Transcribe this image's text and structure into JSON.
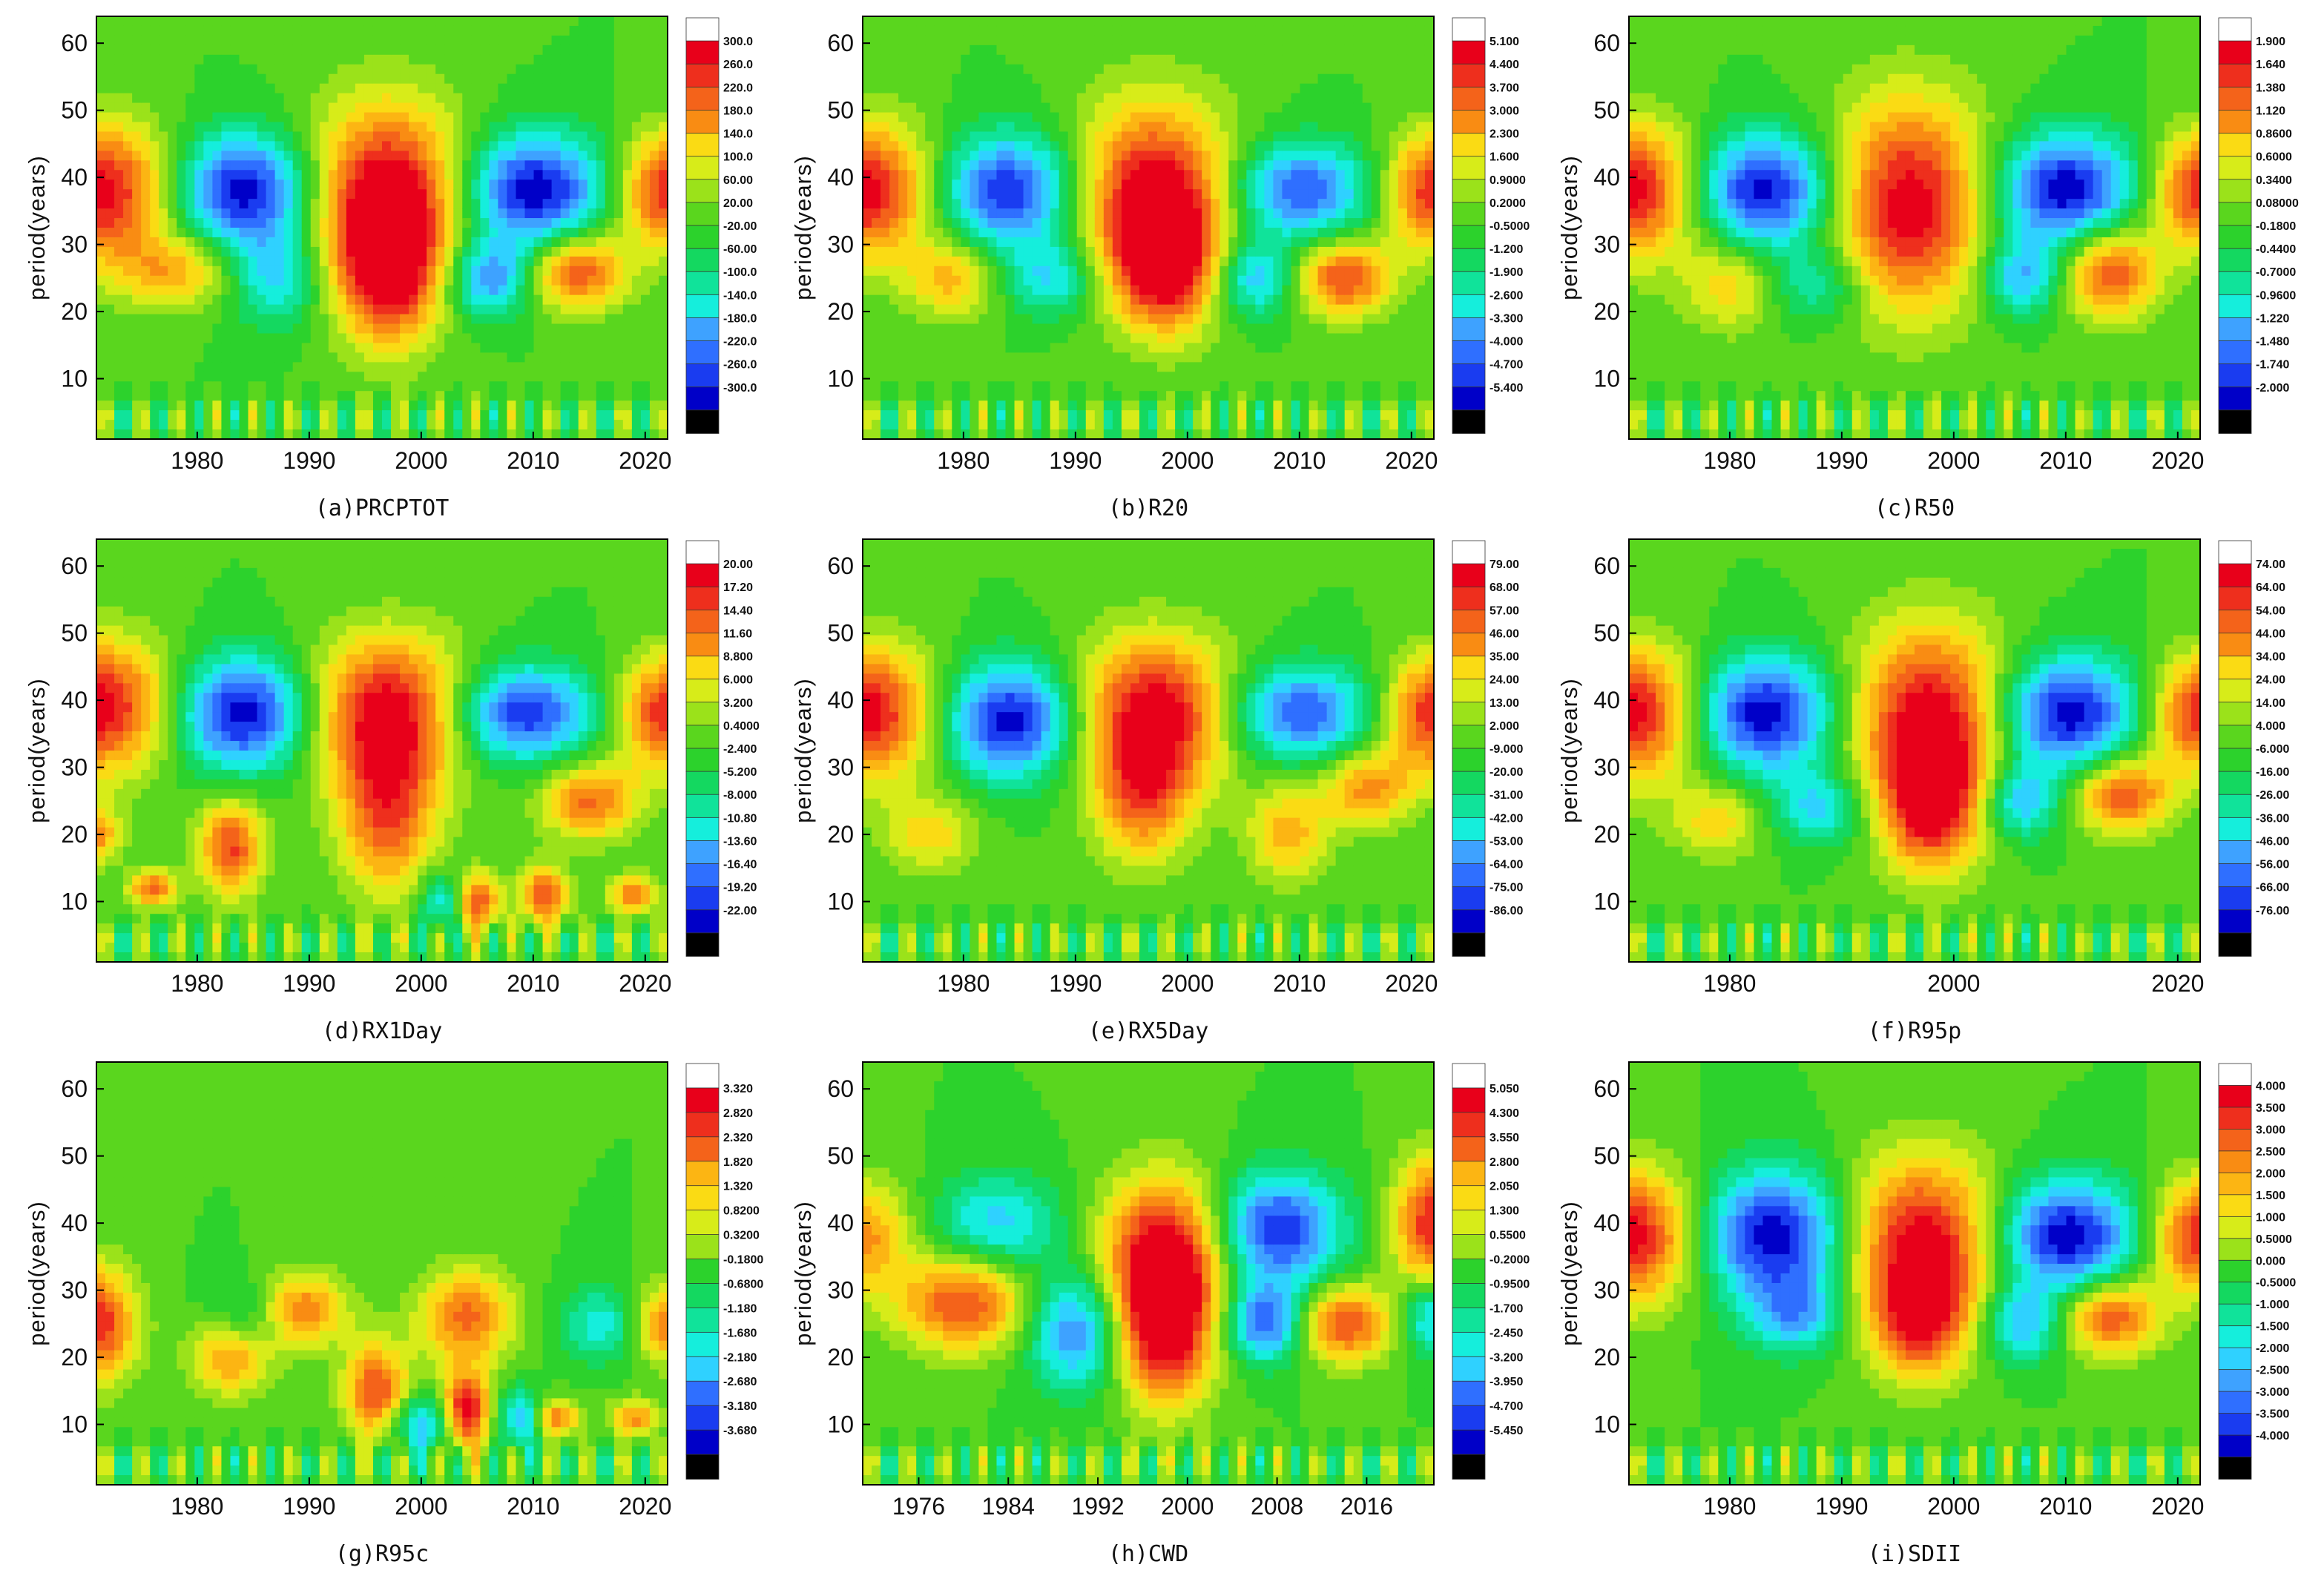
{
  "ylabel": "period(years)",
  "chart_data": [
    {
      "type": "heatmap",
      "id": "a",
      "caption": "(a)PRCPTOT",
      "ylabel": "period(years)",
      "xlim": [
        1971,
        2022
      ],
      "ylim": [
        1,
        64
      ],
      "xticks": [
        "1980",
        "1990",
        "2000",
        "2010",
        "2020"
      ],
      "xtick_values": [
        1980,
        1990,
        2000,
        2010,
        2020
      ],
      "yticks": [
        "10",
        "20",
        "30",
        "40",
        "50",
        "60"
      ],
      "ytick_values": [
        10,
        20,
        30,
        40,
        50,
        60
      ],
      "colorbar": [
        "300.0",
        "260.0",
        "220.0",
        "180.0",
        "140.0",
        "100.0",
        "60.00",
        "20.00",
        "-20.00",
        "-60.00",
        "-100.0",
        "-140.0",
        "-180.0",
        "-220.0",
        "-260.0",
        "-300.0"
      ]
    },
    {
      "type": "heatmap",
      "id": "b",
      "caption": "(b)R20",
      "ylabel": "period(years)",
      "xlim": [
        1971,
        2022
      ],
      "ylim": [
        1,
        64
      ],
      "xticks": [
        "1980",
        "1990",
        "2000",
        "2010",
        "2020"
      ],
      "xtick_values": [
        1980,
        1990,
        2000,
        2010,
        2020
      ],
      "yticks": [
        "10",
        "20",
        "30",
        "40",
        "50",
        "60"
      ],
      "ytick_values": [
        10,
        20,
        30,
        40,
        50,
        60
      ],
      "colorbar": [
        "5.100",
        "4.400",
        "3.700",
        "3.000",
        "2.300",
        "1.600",
        "0.9000",
        "0.2000",
        "-0.5000",
        "-1.200",
        "-1.900",
        "-2.600",
        "-3.300",
        "-4.000",
        "-4.700",
        "-5.400"
      ]
    },
    {
      "type": "heatmap",
      "id": "c",
      "caption": "(c)R50",
      "ylabel": "period(years)",
      "xlim": [
        1971,
        2022
      ],
      "ylim": [
        1,
        64
      ],
      "xticks": [
        "1980",
        "1990",
        "2000",
        "2010",
        "2020"
      ],
      "xtick_values": [
        1980,
        1990,
        2000,
        2010,
        2020
      ],
      "yticks": [
        "10",
        "20",
        "30",
        "40",
        "50",
        "60"
      ],
      "ytick_values": [
        10,
        20,
        30,
        40,
        50,
        60
      ],
      "colorbar": [
        "1.900",
        "1.640",
        "1.380",
        "1.120",
        "0.8600",
        "0.6000",
        "0.3400",
        "0.08000",
        "-0.1800",
        "-0.4400",
        "-0.7000",
        "-0.9600",
        "-1.220",
        "-1.480",
        "-1.740",
        "-2.000"
      ]
    },
    {
      "type": "heatmap",
      "id": "d",
      "caption": "(d)RX1Day",
      "ylabel": "period(years)",
      "xlim": [
        1971,
        2022
      ],
      "ylim": [
        1,
        64
      ],
      "xticks": [
        "1980",
        "1990",
        "2000",
        "2010",
        "2020"
      ],
      "xtick_values": [
        1980,
        1990,
        2000,
        2010,
        2020
      ],
      "yticks": [
        "10",
        "20",
        "30",
        "40",
        "50",
        "60"
      ],
      "ytick_values": [
        10,
        20,
        30,
        40,
        50,
        60
      ],
      "colorbar": [
        "20.00",
        "17.20",
        "14.40",
        "11.60",
        "8.800",
        "6.000",
        "3.200",
        "0.4000",
        "-2.400",
        "-5.200",
        "-8.000",
        "-10.80",
        "-13.60",
        "-16.40",
        "-19.20",
        "-22.00"
      ]
    },
    {
      "type": "heatmap",
      "id": "e",
      "caption": "(e)RX5Day",
      "ylabel": "period(years)",
      "xlim": [
        1971,
        2022
      ],
      "ylim": [
        1,
        64
      ],
      "xticks": [
        "1980",
        "1990",
        "2000",
        "2010",
        "2020"
      ],
      "xtick_values": [
        1980,
        1990,
        2000,
        2010,
        2020
      ],
      "yticks": [
        "10",
        "20",
        "30",
        "40",
        "50",
        "60"
      ],
      "ytick_values": [
        10,
        20,
        30,
        40,
        50,
        60
      ],
      "colorbar": [
        "79.00",
        "68.00",
        "57.00",
        "46.00",
        "35.00",
        "24.00",
        "13.00",
        "2.000",
        "-9.000",
        "-20.00",
        "-31.00",
        "-42.00",
        "-53.00",
        "-64.00",
        "-75.00",
        "-86.00"
      ]
    },
    {
      "type": "heatmap",
      "id": "f",
      "caption": "(f)R95p",
      "ylabel": "period(years)",
      "xlim": [
        1971,
        2022
      ],
      "ylim": [
        1,
        64
      ],
      "xticks": [
        "1980",
        "2000",
        "2020"
      ],
      "xtick_values": [
        1980,
        2000,
        2020
      ],
      "yticks": [
        "10",
        "20",
        "30",
        "40",
        "50",
        "60"
      ],
      "ytick_values": [
        10,
        20,
        30,
        40,
        50,
        60
      ],
      "colorbar": [
        "74.00",
        "64.00",
        "54.00",
        "44.00",
        "34.00",
        "24.00",
        "14.00",
        "4.000",
        "-6.000",
        "-16.00",
        "-26.00",
        "-36.00",
        "-46.00",
        "-56.00",
        "-66.00",
        "-76.00"
      ]
    },
    {
      "type": "heatmap",
      "id": "g",
      "caption": "(g)R95c",
      "ylabel": "period(years)",
      "xlim": [
        1971,
        2022
      ],
      "ylim": [
        1,
        64
      ],
      "xticks": [
        "1980",
        "1990",
        "2000",
        "2010",
        "2020"
      ],
      "xtick_values": [
        1980,
        1990,
        2000,
        2010,
        2020
      ],
      "yticks": [
        "10",
        "20",
        "30",
        "40",
        "50",
        "60"
      ],
      "ytick_values": [
        10,
        20,
        30,
        40,
        50,
        60
      ],
      "colorbar": [
        "3.320",
        "2.820",
        "2.320",
        "1.820",
        "1.320",
        "0.8200",
        "0.3200",
        "-0.1800",
        "-0.6800",
        "-1.180",
        "-1.680",
        "-2.180",
        "-2.680",
        "-3.180",
        "-3.680"
      ]
    },
    {
      "type": "heatmap",
      "id": "h",
      "caption": "(h)CWD",
      "ylabel": "period(years)",
      "xlim": [
        1971,
        2022
      ],
      "ylim": [
        1,
        64
      ],
      "xticks": [
        "1976",
        "1984",
        "1992",
        "2000",
        "2008",
        "2016"
      ],
      "xtick_values": [
        1976,
        1984,
        1992,
        2000,
        2008,
        2016
      ],
      "yticks": [
        "10",
        "20",
        "30",
        "40",
        "50",
        "60"
      ],
      "ytick_values": [
        10,
        20,
        30,
        40,
        50,
        60
      ],
      "colorbar": [
        "5.050",
        "4.300",
        "3.550",
        "2.800",
        "2.050",
        "1.300",
        "0.5500",
        "-0.2000",
        "-0.9500",
        "-1.700",
        "-2.450",
        "-3.200",
        "-3.950",
        "-4.700",
        "-5.450"
      ]
    },
    {
      "type": "heatmap",
      "id": "i",
      "caption": "(i)SDII",
      "ylabel": "period(years)",
      "xlim": [
        1971,
        2022
      ],
      "ylim": [
        1,
        64
      ],
      "xticks": [
        "1980",
        "1990",
        "2000",
        "2010",
        "2020"
      ],
      "xtick_values": [
        1980,
        1990,
        2000,
        2010,
        2020
      ],
      "yticks": [
        "10",
        "20",
        "30",
        "40",
        "50",
        "60"
      ],
      "ytick_values": [
        10,
        20,
        30,
        40,
        50,
        60
      ],
      "colorbar": [
        "4.000",
        "3.500",
        "3.000",
        "2.500",
        "2.000",
        "1.500",
        "1.000",
        "0.5000",
        "0.000",
        "-0.5000",
        "-1.000",
        "-1.500",
        "-2.000",
        "-2.500",
        "-3.000",
        "-3.500",
        "-4.000"
      ]
    }
  ],
  "colors": {
    "scale": [
      "#000000",
      "#0000c8",
      "#1a3cf0",
      "#2f6fff",
      "#3ea2ff",
      "#2fd1ff",
      "#15eedc",
      "#10e39a",
      "#14d860",
      "#2cd22c",
      "#5ad61e",
      "#9be21a",
      "#d7ec19",
      "#fadb14",
      "#fcb513",
      "#f98c13",
      "#f4631a",
      "#ee2f1d",
      "#e8001a",
      "#ffffff"
    ],
    "axis": "#000000"
  }
}
